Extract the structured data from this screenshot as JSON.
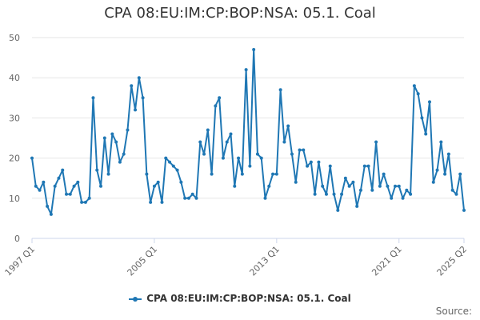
{
  "colors": {
    "series": "#1f77b4",
    "grid": "#e6e6e6",
    "axis": "#ccd6eb",
    "text": "#666666"
  },
  "credits": "Source:",
  "chart_data": {
    "type": "line",
    "title": "CPA 08:EU:IM:CP:BOP:NSA: 05.1. Coal",
    "xlabel": "",
    "ylabel": "",
    "ylim": [
      0,
      50
    ],
    "yticks": [
      0,
      10,
      20,
      30,
      40,
      50
    ],
    "grid": true,
    "legend_position": "bottom",
    "xticks": [
      {
        "label": "1997 Q1",
        "index": 0
      },
      {
        "label": "2005 Q1",
        "index": 32
      },
      {
        "label": "2013 Q1",
        "index": 64
      },
      {
        "label": "2021 Q1",
        "index": 96
      },
      {
        "label": "2025 Q2",
        "index": 113
      }
    ],
    "x_start": "1997 Q1",
    "x_end": "2025 Q2",
    "series": [
      {
        "name": "CPA 08:EU:IM:CP:BOP:NSA: 05.1. Coal",
        "values": [
          20,
          13,
          12,
          14,
          8,
          6,
          13,
          15,
          17,
          11,
          11,
          13,
          14,
          9,
          9,
          10,
          35,
          17,
          13,
          25,
          16,
          26,
          24,
          19,
          21,
          27,
          38,
          32,
          40,
          35,
          16,
          9,
          13,
          14,
          9,
          20,
          19,
          18,
          17,
          14,
          10,
          10,
          11,
          10,
          24,
          21,
          27,
          16,
          33,
          35,
          20,
          24,
          26,
          13,
          20,
          16,
          42,
          18,
          47,
          21,
          20,
          10,
          13,
          16,
          16,
          37,
          24,
          28,
          21,
          14,
          22,
          22,
          18,
          19,
          11,
          19,
          13,
          11,
          18,
          11,
          7,
          11,
          15,
          13,
          14,
          8,
          12,
          18,
          18,
          12,
          24,
          13,
          16,
          13,
          10,
          13,
          13,
          10,
          12,
          11,
          38,
          36,
          30,
          26,
          34,
          14,
          17,
          24,
          16,
          21,
          12,
          11,
          16,
          7
        ]
      }
    ]
  }
}
